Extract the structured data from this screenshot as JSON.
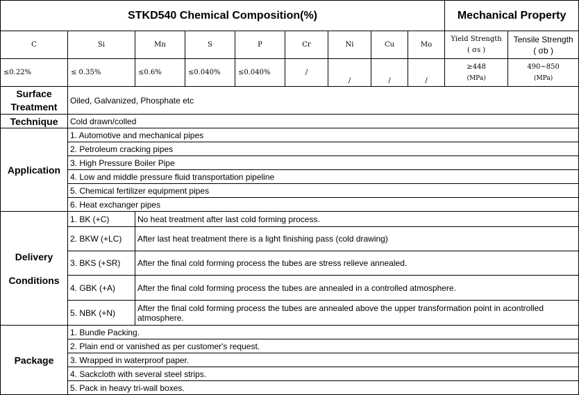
{
  "header": {
    "chem_title": "STKD540 Chemical Composition(%)",
    "mech_title": "Mechanical Property"
  },
  "elements": [
    "C",
    "Si",
    "Mn",
    "S",
    "P",
    "Cr",
    "Ni",
    "Cu",
    "Mo"
  ],
  "mechanical_headers": {
    "yield_label": "Yield Strength",
    "yield_symbol": "( σs )",
    "tensile_label": "Tensile Strength",
    "tensile_symbol": "( σb )"
  },
  "composition_values": [
    "≤0.22%",
    "≤ 0.35%",
    "≤0.6%",
    "≤0.040%",
    "≤0.040%",
    "/",
    "/",
    "/",
    "/"
  ],
  "mechanical_values": {
    "yield": "≥448",
    "yield_unit": "(MPa)",
    "tensile": "490~850",
    "tensile_unit": "(MPa)"
  },
  "surface_treatment": {
    "label_line1": "Surface",
    "label_line2": "Treatment",
    "value": "Oiled, Galvanized, Phosphate etc"
  },
  "technique": {
    "label": "Technique",
    "value": "Cold drawn/colled"
  },
  "application": {
    "label": "Application",
    "items": [
      "1. Automotive and mechanical pipes",
      "2. Petroleum cracking pipes",
      "3. High Pressure Boiler Pipe",
      "4. Low and middle pressure fluid transportation pipeline",
      "5. Chemical fertilizer equipment pipes",
      "6. Heat exchanger pipes"
    ]
  },
  "delivery": {
    "label_line1": "Delivery",
    "label_line2": "Conditions",
    "rows": [
      {
        "code": "1. BK (+C)",
        "desc": "No heat treatment after last cold forming process."
      },
      {
        "code": "2. BKW (+LC)",
        "desc": "After last heat treatment there is a light finishing pass (cold drawing)"
      },
      {
        "code": "3. BKS (+SR)",
        "desc": "After the final cold forming process the tubes are stress relieve annealed."
      },
      {
        "code": "4. GBK (+A)",
        "desc": "After the final cold forming process the tubes are annealed in a controlled atmosphere."
      },
      {
        "code": "5. NBK (+N)",
        "desc": "After the final cold forming process the tubes are annealed above the upper transformation point in acontrolled atmosphere."
      }
    ]
  },
  "package": {
    "label": "Package",
    "items": [
      "1. Bundle Packing.",
      "2. Plain end or vanished as per customer's request.",
      "3. Wrapped in waterproof paper.",
      "4. Sackcloth with several steel strips.",
      "5. Pack in heavy tri-wall boxes."
    ]
  }
}
